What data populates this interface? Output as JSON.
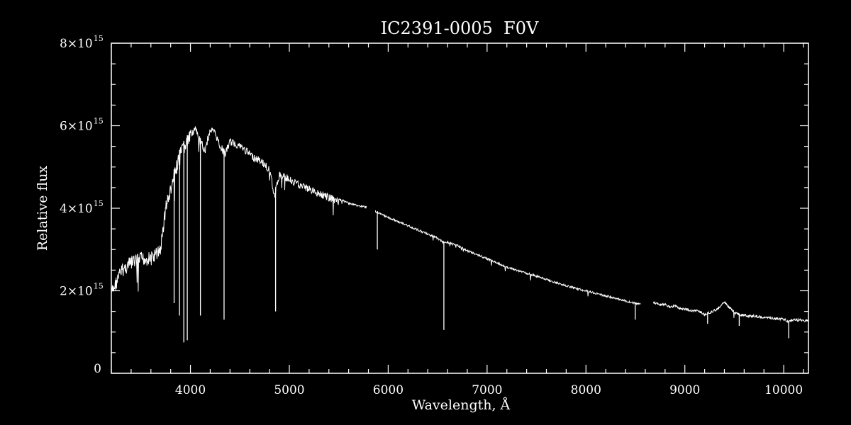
{
  "chart_data": {
    "type": "line",
    "title": "IC2391-0005  F0V",
    "xlabel": "Wavelength, Å",
    "ylabel": "Relative flux",
    "xlim": [
      3200,
      10250
    ],
    "ylim": [
      0,
      8000000000000000.0
    ],
    "grid": false,
    "legend": "none",
    "colors": {
      "background": "#000000",
      "foreground": "#ffffff"
    },
    "x_ticks": [
      {
        "value": 4000,
        "label": "4000"
      },
      {
        "value": 5000,
        "label": "5000"
      },
      {
        "value": 6000,
        "label": "6000"
      },
      {
        "value": 7000,
        "label": "7000"
      },
      {
        "value": 8000,
        "label": "8000"
      },
      {
        "value": 9000,
        "label": "9000"
      },
      {
        "value": 10000,
        "label": "10000"
      }
    ],
    "x_minor_step": 200,
    "y_ticks": [
      {
        "value": 0,
        "mantissa": "0",
        "exponent": ""
      },
      {
        "value": 2000000000000000.0,
        "mantissa": "2×10",
        "exponent": "15"
      },
      {
        "value": 4000000000000000.0,
        "mantissa": "4×10",
        "exponent": "15"
      },
      {
        "value": 6000000000000000.0,
        "mantissa": "6×10",
        "exponent": "15"
      },
      {
        "value": 8000000000000000.0,
        "mantissa": "8×10",
        "exponent": "15"
      }
    ],
    "y_minor_step": 500000000000000.0,
    "series": [
      {
        "x": [
          3200,
          3300,
          3400,
          3500,
          3600,
          3650,
          3700,
          3750,
          3800,
          3850,
          3900,
          3950,
          4000,
          4050,
          4100,
          4150,
          4200,
          4250,
          4300,
          4350,
          4400,
          4450,
          4500,
          4550,
          4600,
          4650,
          4700,
          4750,
          4800,
          4850,
          4900,
          4950,
          5000,
          5100,
          5200,
          5300,
          5400,
          5500,
          5600,
          5700,
          5780,
          null,
          5870,
          5950,
          6050,
          6150,
          6250,
          6350,
          6450,
          6500,
          6550,
          6600,
          6700,
          6800,
          6900,
          7000,
          7100,
          7200,
          7300,
          7400,
          7500,
          7600,
          7700,
          7800,
          7900,
          8000,
          8100,
          8200,
          8300,
          8400,
          8500,
          8550,
          null,
          8680,
          8750,
          8800,
          8850,
          8900,
          8950,
          9000,
          9050,
          9100,
          9150,
          9200,
          9250,
          9300,
          9350,
          9400,
          9450,
          9500,
          9550,
          9600,
          9650,
          9700,
          9800,
          9900,
          10000,
          10050,
          10100,
          10150,
          10250
        ],
        "y": [
          2100000000000000.0,
          2650000000000000.0,
          2850000000000000.0,
          2950000000000000.0,
          2950000000000000.0,
          3050000000000000.0,
          3200000000000000.0,
          4200000000000000.0,
          4600000000000000.0,
          5100000000000000.0,
          5500000000000000.0,
          5700000000000000.0,
          5900000000000000.0,
          6000000000000000.0,
          5700000000000000.0,
          5500000000000000.0,
          6000000000000000.0,
          5900000000000000.0,
          5600000000000000.0,
          5400000000000000.0,
          5700000000000000.0,
          5650000000000000.0,
          5600000000000000.0,
          5500000000000000.0,
          5400000000000000.0,
          5300000000000000.0,
          5250000000000000.0,
          5150000000000000.0,
          5000000000000000.0,
          4400000000000000.0,
          4900000000000000.0,
          4850000000000000.0,
          4800000000000000.0,
          4650000000000000.0,
          4550000000000000.0,
          4450000000000000.0,
          4350000000000000.0,
          4250000000000000.0,
          4150000000000000.0,
          4080000000000000.0,
          4050000000000000.0,
          null,
          3950000000000000.0,
          3850000000000000.0,
          3750000000000000.0,
          3650000000000000.0,
          3550000000000000.0,
          3450000000000000.0,
          3350000000000000.0,
          3300000000000000.0,
          3200000000000000.0,
          3200000000000000.0,
          3120000000000000.0,
          3000000000000000.0,
          2900000000000000.0,
          2800000000000000.0,
          2700000000000000.0,
          2600000000000000.0,
          2520000000000000.0,
          2450000000000000.0,
          2380000000000000.0,
          2300000000000000.0,
          2220000000000000.0,
          2150000000000000.0,
          2080000000000000.0,
          2020000000000000.0,
          1960000000000000.0,
          1900000000000000.0,
          1840000000000000.0,
          1780000000000000.0,
          1720000000000000.0,
          1700000000000000.0,
          null,
          1750000000000000.0,
          1680000000000000.0,
          1700000000000000.0,
          1620000000000000.0,
          1660000000000000.0,
          1600000000000000.0,
          1580000000000000.0,
          1560000000000000.0,
          1550000000000000.0,
          1520000000000000.0,
          1450000000000000.0,
          1500000000000000.0,
          1550000000000000.0,
          1620000000000000.0,
          1750000000000000.0,
          1620000000000000.0,
          1520000000000000.0,
          1450000000000000.0,
          1440000000000000.0,
          1420000000000000.0,
          1420000000000000.0,
          1380000000000000.0,
          1360000000000000.0,
          1340000000000000.0,
          1280000000000000.0,
          1320000000000000.0,
          1320000000000000.0,
          1300000000000000.0
        ]
      }
    ],
    "absorption_lines": [
      {
        "x": 3835,
        "y": 1700000000000000.0
      },
      {
        "x": 3889,
        "y": 1400000000000000.0
      },
      {
        "x": 3933,
        "y": 750000000000000.0
      },
      {
        "x": 3968,
        "y": 800000000000000.0
      },
      {
        "x": 4101,
        "y": 1400000000000000.0
      },
      {
        "x": 4340,
        "y": 1300000000000000.0
      },
      {
        "x": 4861,
        "y": 1500000000000000.0
      },
      {
        "x": 5890,
        "y": 3000000000000000.0
      },
      {
        "x": 6563,
        "y": 1050000000000000.0
      },
      {
        "x": 8498,
        "y": 1300000000000000.0
      },
      {
        "x": 9230,
        "y": 1200000000000000.0
      },
      {
        "x": 9550,
        "y": 1150000000000000.0
      },
      {
        "x": 10050,
        "y": 850000000000000.0
      }
    ]
  }
}
